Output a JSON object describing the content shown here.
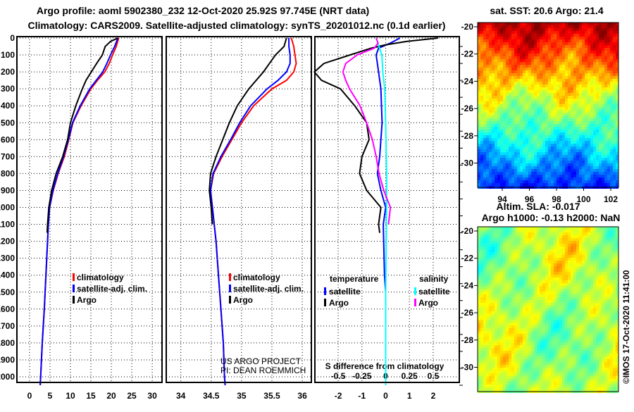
{
  "title_line1": "Argo profile: aoml 5902380_232 12-Oct-2020 25.92S 97.745E (NRT data)",
  "title_line2": "Climatology: CARS2009. Satellite-adjusted climatology: synTS_20201012.nc (0.1d earlier)",
  "colors": {
    "climatology": "#ff0000",
    "satellite": "#0000ff",
    "argo": "#000000",
    "sal_satellite": "#00ffff",
    "sal_argo": "#ff00ff"
  },
  "chart_data": [
    {
      "type": "line",
      "name": "temperature-profile",
      "xlim": [
        -3.1,
        32.4
      ],
      "ylim": [
        2050,
        0
      ],
      "xticks": [
        0,
        5,
        10,
        15,
        20,
        25,
        30
      ],
      "yticks": [
        0,
        100,
        200,
        300,
        400,
        500,
        600,
        700,
        800,
        900,
        1000,
        1100,
        1200,
        1300,
        1400,
        1500,
        1600,
        1700,
        1800,
        1900,
        2000
      ],
      "grid": true,
      "legend": [
        "climatology",
        "satellite-adj. clim.",
        "Argo"
      ],
      "series": [
        {
          "name": "climatology",
          "color": "#ff0000",
          "depth": [
            0,
            50,
            100,
            150,
            200,
            250,
            300,
            400,
            500,
            600,
            700,
            800,
            900,
            1000,
            1100,
            1200,
            1400,
            1600,
            1800,
            2000,
            2050
          ],
          "values": [
            21.8,
            21.2,
            20.3,
            19.5,
            18.4,
            16.6,
            15.0,
            12.6,
            10.6,
            9.6,
            8.5,
            7.0,
            5.8,
            4.9,
            4.6,
            4.4,
            4.0,
            3.6,
            3.1,
            2.7,
            2.6
          ]
        },
        {
          "name": "satellite-adj. clim.",
          "color": "#0000ff",
          "depth": [
            0,
            50,
            100,
            150,
            200,
            250,
            300,
            400,
            500,
            600,
            700,
            800,
            900,
            1000,
            1100,
            1200,
            1400,
            1600,
            1800,
            2000,
            2050
          ],
          "values": [
            21.6,
            20.8,
            19.8,
            18.9,
            17.9,
            16.3,
            14.7,
            12.4,
            10.5,
            9.5,
            8.3,
            6.9,
            5.7,
            4.9,
            4.6,
            4.4,
            4.0,
            3.6,
            3.1,
            2.7,
            2.6
          ]
        },
        {
          "name": "Argo",
          "color": "#000000",
          "depth": [
            0,
            20,
            50,
            100,
            150,
            200,
            250,
            300,
            400,
            500,
            600,
            700,
            800,
            900,
            1000,
            1100,
            1150
          ],
          "values": [
            21.6,
            19.8,
            18.5,
            17.8,
            16.4,
            15.1,
            13.8,
            12.9,
            11.3,
            10.0,
            9.3,
            8.1,
            6.5,
            5.4,
            4.7,
            4.4,
            4.3
          ]
        }
      ]
    },
    {
      "type": "line",
      "name": "salinity-profile",
      "xlim": [
        33.76,
        36.15
      ],
      "ylim": [
        2050,
        0
      ],
      "xticks": [
        34,
        34.5,
        35,
        35.5,
        36
      ],
      "grid": true,
      "legend": [
        "climatology",
        "satellite-adj. clim.",
        "Argo"
      ],
      "annotation": [
        "US ARGO PROJECT",
        "PI: DEAN ROEMMICH"
      ],
      "series": [
        {
          "name": "climatology",
          "color": "#ff0000",
          "depth": [
            0,
            50,
            100,
            150,
            200,
            250,
            300,
            400,
            500,
            600,
            700,
            800,
            900,
            1000,
            1200,
            1400,
            1600,
            1800,
            2000,
            2050
          ],
          "values": [
            35.82,
            35.86,
            35.88,
            35.9,
            35.86,
            35.74,
            35.5,
            35.2,
            35.0,
            34.84,
            34.68,
            34.54,
            34.49,
            34.52,
            34.58,
            34.62,
            34.66,
            34.7,
            34.72,
            34.73
          ]
        },
        {
          "name": "satellite-adj. clim.",
          "color": "#0000ff",
          "depth": [
            0,
            50,
            100,
            150,
            200,
            250,
            300,
            400,
            500,
            600,
            700,
            800,
            900,
            1000,
            1200,
            1400,
            1600,
            1800,
            2000,
            2050
          ],
          "values": [
            35.78,
            35.78,
            35.8,
            35.8,
            35.74,
            35.6,
            35.42,
            35.15,
            34.97,
            34.82,
            34.66,
            34.53,
            34.49,
            34.52,
            34.58,
            34.62,
            34.66,
            34.7,
            34.72,
            34.73
          ]
        },
        {
          "name": "Argo",
          "color": "#000000",
          "depth": [
            0,
            50,
            100,
            150,
            200,
            300,
            400,
            500,
            600,
            700,
            800,
            900,
            1000,
            1100
          ],
          "values": [
            35.74,
            35.7,
            35.56,
            35.46,
            35.36,
            35.12,
            34.93,
            34.8,
            34.69,
            34.58,
            34.49,
            34.47,
            34.5,
            34.52
          ]
        }
      ]
    },
    {
      "type": "line",
      "name": "difference-profile",
      "xlim": [
        -2.98,
        3.1
      ],
      "ylim": [
        2050,
        0
      ],
      "xticks": [
        -2,
        -1,
        0,
        1,
        2
      ],
      "xlabel": "S difference from climatology",
      "s_ticks": [
        -0.5,
        -0.25,
        0,
        0.25,
        0.5
      ],
      "s_tick_labels": [
        "-0.5",
        "-0.25",
        "0",
        "0.25",
        "0.5"
      ],
      "grid": true,
      "legend_temperature": {
        "title": "temperature",
        "items": [
          "satellite",
          "Argo"
        ]
      },
      "legend_salinity": {
        "title": "salinity",
        "items": [
          "satellite",
          "Argo"
        ]
      },
      "series": [
        {
          "name": "T satellite",
          "color": "#0000ff",
          "scale": "T",
          "depth": [
            0,
            30,
            60,
            100,
            200,
            300,
            500,
            700,
            800,
            900,
            1000,
            1100,
            1400,
            1500,
            2050
          ],
          "values": [
            0.6,
            0.2,
            -0.3,
            -0.4,
            -0.3,
            -0.2,
            -0.15,
            -0.25,
            -0.35,
            -0.2,
            0.0,
            -0.1,
            -0.05,
            0.0,
            0.0
          ]
        },
        {
          "name": "T Argo",
          "color": "#000000",
          "scale": "T",
          "depth": [
            0,
            20,
            40,
            60,
            100,
            150,
            200,
            250,
            300,
            400,
            500,
            600,
            700,
            800,
            900,
            1000,
            1100,
            1150
          ],
          "values": [
            2.2,
            0.9,
            0.0,
            -0.6,
            -1.5,
            -2.6,
            -3.0,
            -2.7,
            -1.9,
            -1.3,
            -0.8,
            -0.7,
            -1.0,
            -1.1,
            -0.8,
            -0.2,
            -0.3,
            -0.25
          ]
        },
        {
          "name": "S satellite",
          "color": "#00ffff",
          "scale": "S",
          "depth": [
            0,
            50,
            100,
            200,
            300,
            500,
            800,
            1000,
            1500,
            2050
          ],
          "values": [
            -0.1,
            -0.07,
            -0.04,
            -0.03,
            -0.01,
            0.0,
            0.01,
            0.01,
            0.0,
            0.0
          ]
        },
        {
          "name": "S Argo",
          "color": "#ff00ff",
          "scale": "S",
          "depth": [
            0,
            30,
            60,
            100,
            150,
            200,
            250,
            300,
            400,
            500,
            600,
            700,
            800,
            900,
            1000,
            1100
          ],
          "values": [
            -0.1,
            -0.08,
            -0.12,
            -0.3,
            -0.42,
            -0.45,
            -0.42,
            -0.38,
            -0.27,
            -0.2,
            -0.14,
            -0.1,
            -0.07,
            -0.02,
            0.05,
            0.03
          ]
        }
      ]
    }
  ],
  "map_sst": {
    "title": "sat. SST: 20.6 Argo: 21.4",
    "lat_ticks": [
      "-20",
      "-22",
      "-24",
      "-26",
      "-28",
      "-30"
    ],
    "lon_ticks": [
      "94",
      "96",
      "98",
      "100",
      "102"
    ]
  },
  "map_sla": {
    "title1": "Altim. SLA: -0.017",
    "title2": "Argo h1000: -0.13 h2000: NaN",
    "lat_ticks": [
      "-20",
      "-22",
      "-24",
      "-26",
      "-28",
      "-30"
    ]
  },
  "credit": "©IMOS 17-Oct-2020 11:41:00"
}
